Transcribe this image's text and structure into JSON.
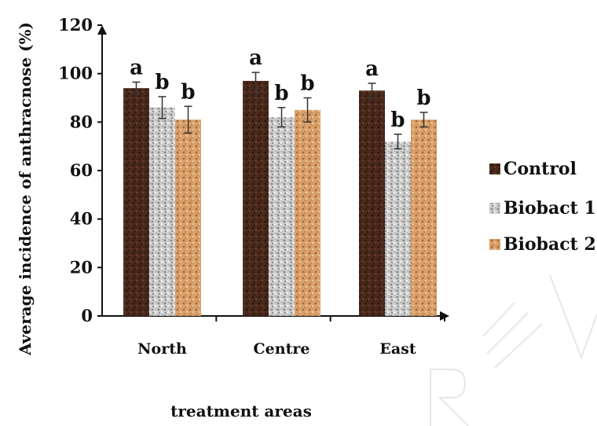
{
  "chart_data": {
    "type": "bar",
    "title": "",
    "xlabel": "treatment areas",
    "ylabel": "Average incidence of anthracnose (%)",
    "ylim": [
      0,
      120
    ],
    "yticks": [
      0,
      20,
      40,
      60,
      80,
      100,
      120
    ],
    "categories": [
      "North",
      "Centre",
      "East"
    ],
    "series": [
      {
        "name": "Control",
        "values": [
          94,
          97,
          93
        ],
        "errors": [
          2.5,
          3.5,
          3
        ],
        "letters": [
          "a",
          "a",
          "a"
        ],
        "color": "#4a2a1c"
      },
      {
        "name": "Biobact 1",
        "values": [
          86,
          82,
          72
        ],
        "errors": [
          4.5,
          4,
          3
        ],
        "letters": [
          "b",
          "b",
          "b"
        ],
        "color": "#c8c8c8"
      },
      {
        "name": "Biobact 2",
        "values": [
          81,
          85,
          81
        ],
        "errors": [
          5.5,
          5,
          3
        ],
        "letters": [
          "b",
          "b",
          "b"
        ],
        "color": "#d9a06b"
      }
    ],
    "grid": false,
    "legend_position": "right",
    "watermark": "REVIEW"
  }
}
